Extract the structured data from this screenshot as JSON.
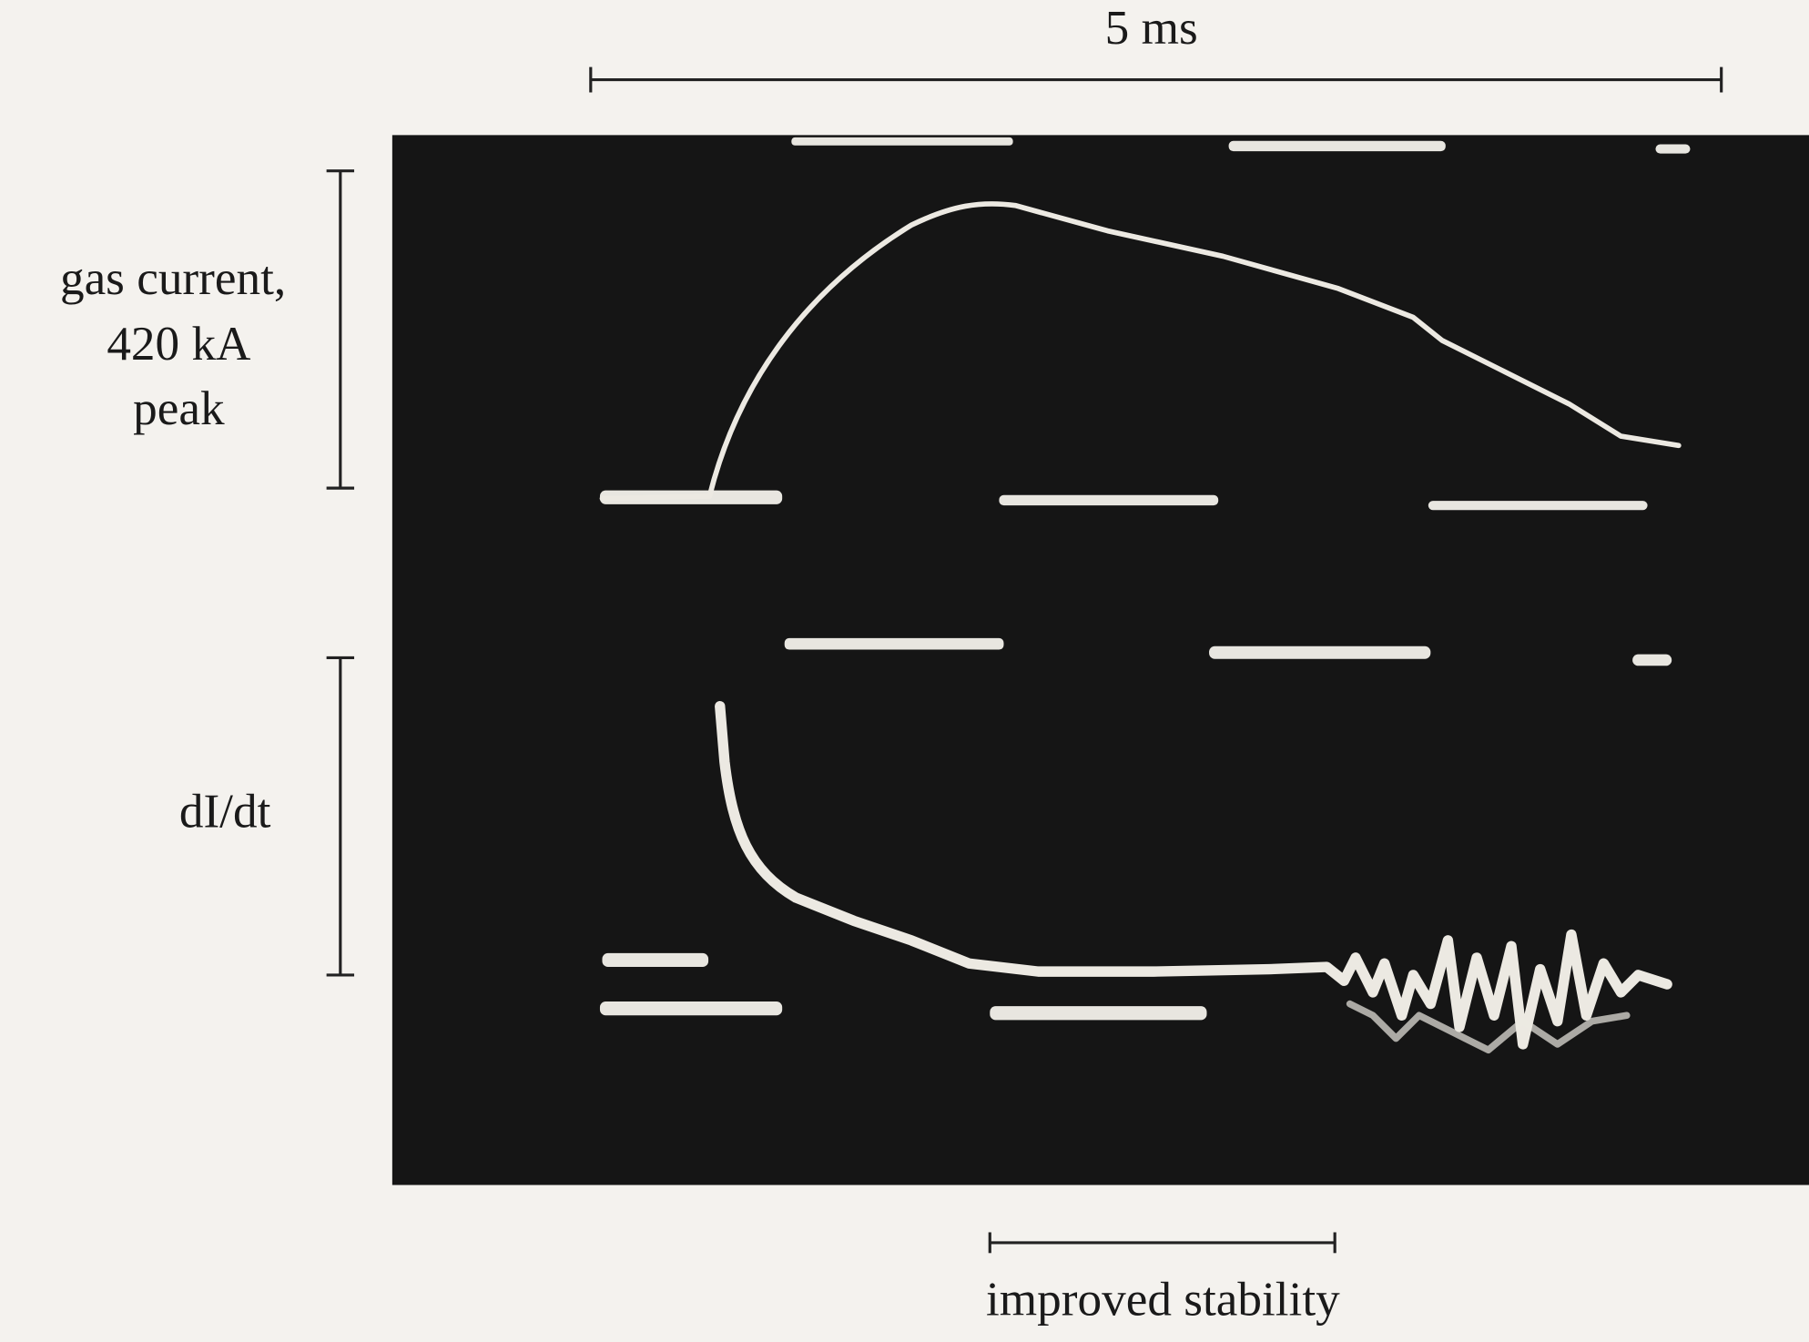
{
  "scale_bar": {
    "label": "5 ms"
  },
  "gas_current": {
    "lines": [
      "gas current,",
      "420 kA",
      "peak"
    ]
  },
  "derivative": {
    "label": "dI/dt"
  },
  "stability": {
    "label": "improved stability"
  }
}
